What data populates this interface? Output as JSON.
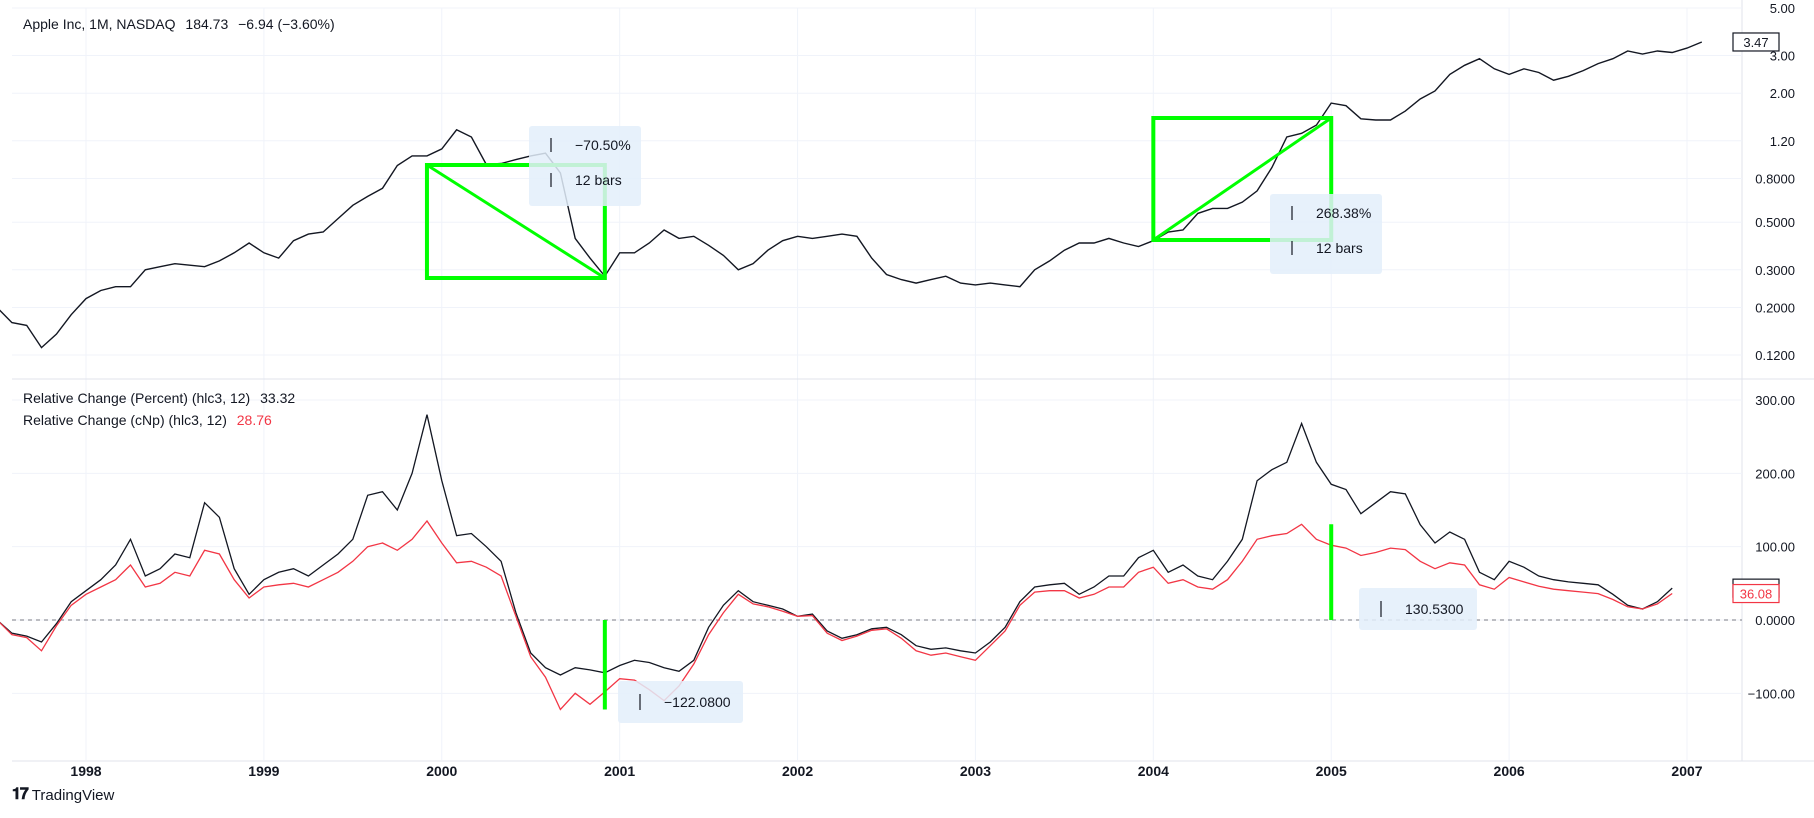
{
  "header": {
    "symbol": "Apple Inc, 1M, NASDAQ",
    "last": "184.73",
    "change": "−6.94 (−3.60%)"
  },
  "indicator_legend": {
    "line1_label": "Relative Change (Percent) (hlc3, 12)",
    "line1_value": "33.32",
    "line2_label": "Relative Change (cNp) (hlc3, 12)",
    "line2_value": "28.76"
  },
  "brand": "TradingView",
  "colors": {
    "price_line": "#131722",
    "percent_line": "#131722",
    "cnp_line": "#f23645",
    "drawing": "#00ff00",
    "label_bg": "#e3eefa",
    "grid": "#f0f3fa"
  },
  "chart_data": [
    {
      "type": "line",
      "scale": "log",
      "ylim": [
        0.1,
        5.0
      ],
      "yticks": [
        "5.00",
        "3.00",
        "2.00",
        "1.20",
        "0.8000",
        "0.5000",
        "0.3000",
        "0.2000",
        "0.1200"
      ],
      "ytick_values": [
        5.0,
        3.0,
        2.0,
        1.2,
        0.8,
        0.5,
        0.3,
        0.2,
        0.12
      ],
      "last_value_label": "3.47",
      "series": [
        {
          "x_start": "1997-06",
          "x_step": "1 month",
          "values": [
            0.21,
            0.2,
            0.17,
            0.165,
            0.13,
            0.15,
            0.185,
            0.22,
            0.24,
            0.25,
            0.25,
            0.3,
            0.31,
            0.32,
            0.315,
            0.31,
            0.33,
            0.36,
            0.4,
            0.36,
            0.34,
            0.41,
            0.44,
            0.45,
            0.52,
            0.6,
            0.66,
            0.72,
            0.92,
            1.02,
            1.02,
            1.1,
            1.35,
            1.25,
            0.93,
            0.94,
            0.98,
            1.02,
            1.05,
            0.85,
            0.42,
            0.34,
            0.28,
            0.36,
            0.36,
            0.4,
            0.46,
            0.42,
            0.43,
            0.39,
            0.35,
            0.3,
            0.32,
            0.37,
            0.41,
            0.43,
            0.42,
            0.43,
            0.44,
            0.43,
            0.34,
            0.285,
            0.27,
            0.26,
            0.27,
            0.28,
            0.26,
            0.255,
            0.26,
            0.255,
            0.25,
            0.3,
            0.33,
            0.37,
            0.4,
            0.4,
            0.42,
            0.4,
            0.385,
            0.41,
            0.45,
            0.46,
            0.55,
            0.58,
            0.58,
            0.62,
            0.7,
            0.9,
            1.25,
            1.3,
            1.42,
            1.8,
            1.75,
            1.52,
            1.5,
            1.5,
            1.65,
            1.88,
            2.05,
            2.45,
            2.7,
            2.9,
            2.6,
            2.45,
            2.6,
            2.5,
            2.3,
            2.4,
            2.55,
            2.75,
            2.9,
            3.15,
            3.05,
            3.15,
            3.1,
            3.25,
            3.47
          ]
        }
      ],
      "annotations": [
        {
          "label": "−70.50%",
          "bars_label": "12 bars"
        },
        {
          "label": "268.38%",
          "bars_label": "12 bars"
        }
      ]
    },
    {
      "type": "line",
      "ylim": [
        -150,
        300
      ],
      "yticks": [
        "300.00",
        "200.00",
        "100.00",
        "0.0000",
        "−100.00"
      ],
      "ytick_values": [
        300,
        200,
        100,
        0,
        -100
      ],
      "last_value_labels": [
        "43.45",
        "36.08"
      ],
      "series": [
        {
          "name": "Relative Change (Percent) (hlc3, 12)",
          "values": [
            0,
            0,
            -18,
            -22,
            -30,
            -5,
            25,
            40,
            55,
            75,
            110,
            60,
            70,
            90,
            85,
            160,
            140,
            70,
            35,
            55,
            65,
            70,
            60,
            75,
            90,
            110,
            170,
            175,
            150,
            200,
            280,
            190,
            115,
            118,
            100,
            80,
            10,
            -45,
            -65,
            -75,
            -65,
            -68,
            -72,
            -62,
            -55,
            -58,
            -65,
            -70,
            -55,
            -10,
            20,
            40,
            25,
            20,
            15,
            5,
            8,
            -15,
            -25,
            -20,
            -12,
            -10,
            -20,
            -35,
            -40,
            -38,
            -42,
            -45,
            -30,
            -10,
            25,
            45,
            48,
            50,
            35,
            45,
            60,
            60,
            85,
            95,
            65,
            75,
            60,
            55,
            80,
            110,
            190,
            205,
            215,
            268,
            215,
            185,
            178,
            145,
            160,
            175,
            172,
            130,
            105,
            120,
            110,
            65,
            55,
            80,
            72,
            60,
            55,
            52,
            50,
            48,
            35,
            20,
            15,
            25,
            43.45
          ]
        },
        {
          "name": "Relative Change (cNp) (hlc3, 12)",
          "values": [
            0,
            0,
            -20,
            -24,
            -42,
            -8,
            20,
            35,
            45,
            55,
            75,
            45,
            50,
            65,
            60,
            95,
            90,
            55,
            30,
            45,
            48,
            50,
            45,
            55,
            65,
            80,
            100,
            105,
            95,
            110,
            135,
            105,
            78,
            80,
            72,
            60,
            5,
            -50,
            -78,
            -122,
            -100,
            -115,
            -98,
            -80,
            -82,
            -95,
            -110,
            -90,
            -60,
            -20,
            10,
            35,
            22,
            18,
            12,
            5,
            6,
            -18,
            -28,
            -22,
            -14,
            -12,
            -25,
            -42,
            -48,
            -45,
            -50,
            -55,
            -35,
            -15,
            20,
            38,
            40,
            40,
            30,
            35,
            45,
            45,
            65,
            72,
            50,
            55,
            45,
            42,
            55,
            80,
            110,
            115,
            118,
            130.53,
            110,
            102,
            98,
            88,
            92,
            98,
            96,
            80,
            70,
            78,
            75,
            48,
            42,
            58,
            52,
            46,
            42,
            40,
            38,
            36,
            28,
            18,
            15,
            22,
            36.08
          ]
        }
      ],
      "annotations": [
        {
          "label": "−122.0800"
        },
        {
          "label": "130.5300"
        }
      ]
    }
  ],
  "x_axis": {
    "tick_labels": [
      "1998",
      "1999",
      "2000",
      "2001",
      "2002",
      "2003",
      "2004",
      "2005",
      "2006",
      "2007"
    ],
    "tick_dates": [
      "1998-01",
      "1999-01",
      "2000-01",
      "2001-01",
      "2002-01",
      "2003-01",
      "2004-01",
      "2005-01",
      "2006-01",
      "2007-01"
    ]
  }
}
